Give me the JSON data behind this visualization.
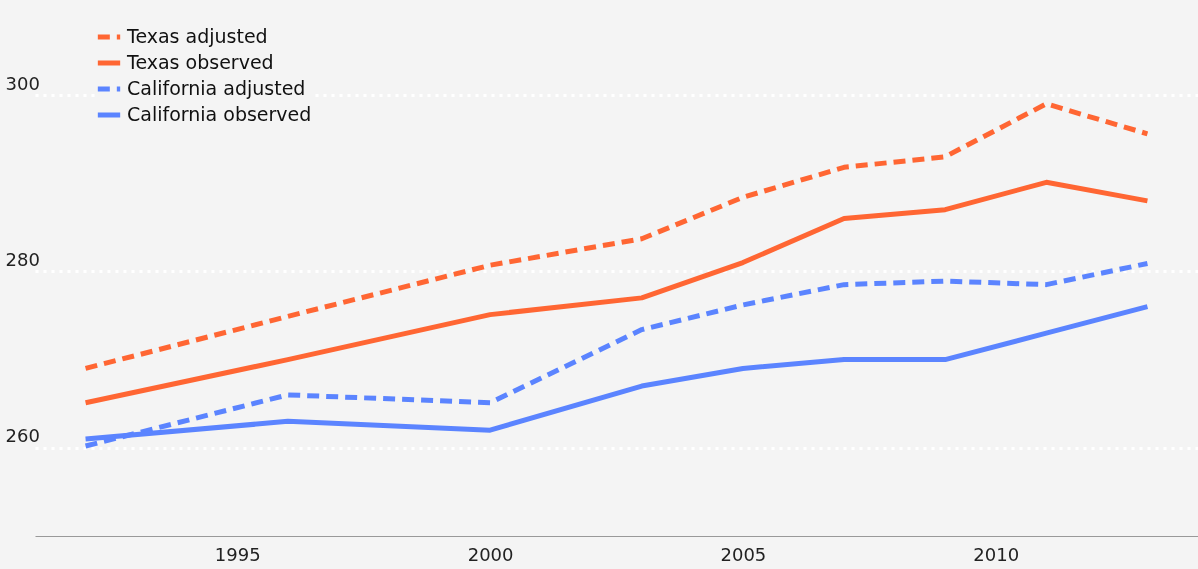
{
  "chart_data": {
    "type": "line",
    "x": [
      1992,
      1996,
      2000,
      2003,
      2005,
      2007,
      2009,
      2011,
      2013
    ],
    "series": [
      {
        "name": "Texas adjusted",
        "color": "#ff6633",
        "line_style": "dashed",
        "values": [
          269.0,
          274.9,
          280.7,
          283.7,
          288.4,
          291.8,
          293.0,
          299.0,
          295.6
        ]
      },
      {
        "name": "Texas observed",
        "color": "#ff6633",
        "line_style": "solid",
        "values": [
          265.1,
          270.0,
          275.1,
          277.0,
          281.0,
          286.0,
          287.0,
          290.1,
          288.0
        ]
      },
      {
        "name": "California adjusted",
        "color": "#5b84ff",
        "line_style": "dashed",
        "values": [
          260.2,
          266.0,
          265.1,
          273.4,
          276.2,
          278.5,
          278.9,
          278.5,
          280.9
        ]
      },
      {
        "name": "California observed",
        "color": "#5b84ff",
        "line_style": "solid",
        "values": [
          261.0,
          263.0,
          262.0,
          267.0,
          269.0,
          270.0,
          270.0,
          273.0,
          276.0
        ]
      }
    ],
    "xlim": [
      1991,
      2014
    ],
    "xticks": [
      1995,
      2000,
      2005,
      2010
    ],
    "ylim": [
      250,
      300
    ],
    "yticks": [
      260,
      280,
      300
    ],
    "grid": "y",
    "legend": "top left"
  }
}
